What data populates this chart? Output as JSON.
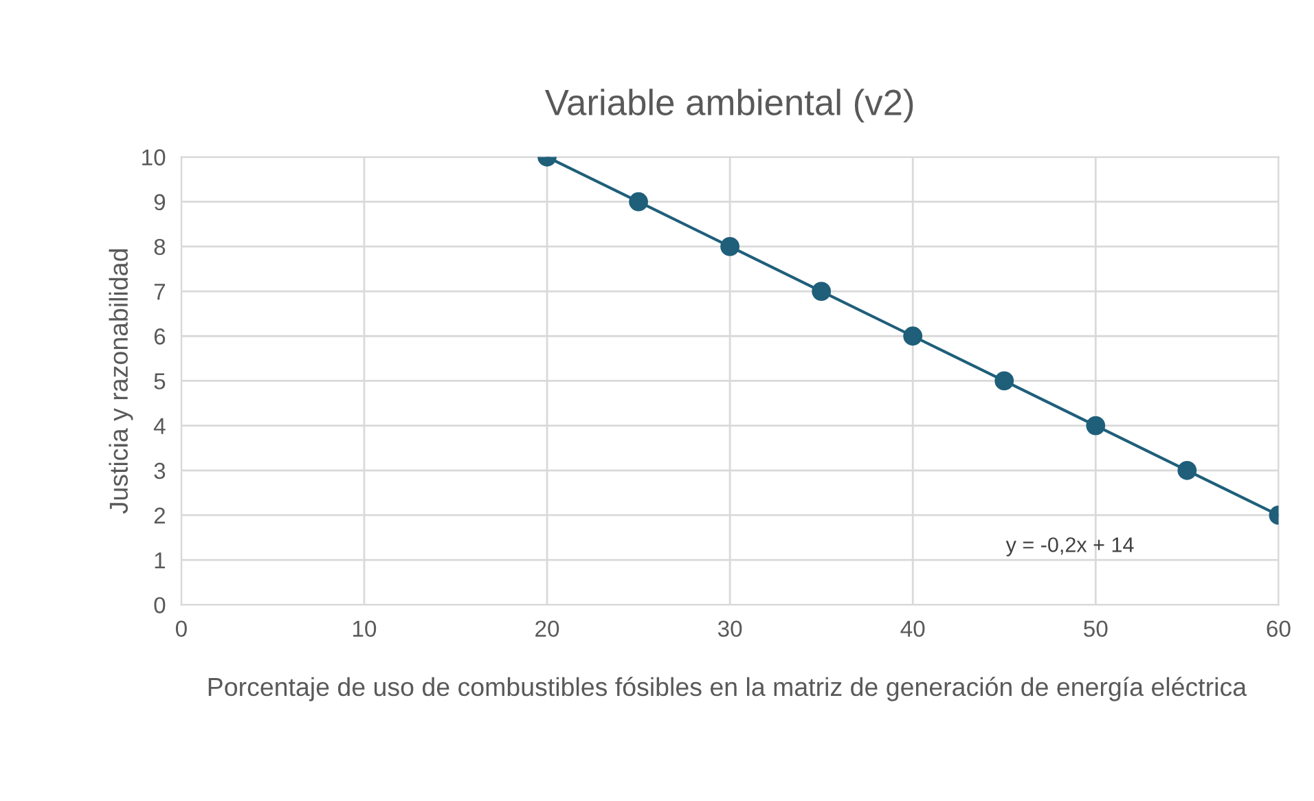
{
  "chart_data": {
    "type": "line",
    "title": "Variable ambiental (v2)",
    "xlabel": "Porcentaje de uso de combustibles fósibles en la matriz de generación de energía eléctrica",
    "ylabel": "Justicia y razonabilidad",
    "x": [
      20,
      25,
      30,
      35,
      40,
      45,
      50,
      55,
      60
    ],
    "series": [
      {
        "color": "#1f5f7a",
        "values": [
          10,
          9,
          8,
          7,
          6,
          5,
          4,
          3,
          2
        ]
      }
    ],
    "marker": "circle",
    "line_style": "solid",
    "annotations": [
      "y = -0,2x + 14"
    ],
    "xlim": [
      0,
      60
    ],
    "xticks": [
      0,
      10,
      20,
      30,
      40,
      50,
      60
    ],
    "ylim": [
      0,
      10
    ],
    "yticks": [
      0,
      1,
      2,
      3,
      4,
      5,
      6,
      7,
      8,
      9,
      10
    ],
    "grid": true
  }
}
